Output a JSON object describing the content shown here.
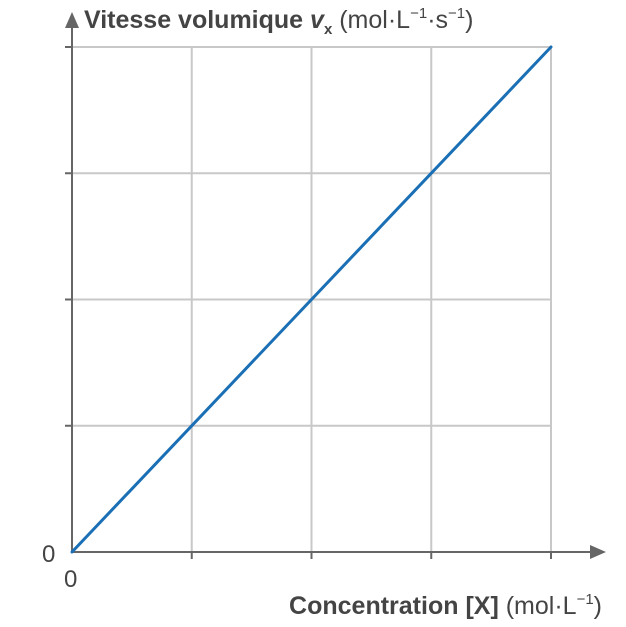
{
  "chart_data": {
    "type": "line",
    "ylabel": {
      "name": "Vitesse volumique",
      "symbol": "v",
      "subscript": "x",
      "unit_open": "(mol·L",
      "unit_exp1": "−1",
      "unit_mid": "·s",
      "unit_exp2": "−1",
      "unit_close": ")"
    },
    "xlabel": {
      "name": "Concentration [X]",
      "unit_open": "(mol·L",
      "unit_exp": "−1",
      "unit_close": ")"
    },
    "origin_x_label": "0",
    "origin_y_label": "0",
    "xlim": [
      0,
      4
    ],
    "ylim": [
      0,
      4
    ],
    "grid": true,
    "x_gridlines": [
      1,
      2,
      3,
      4
    ],
    "y_gridlines": [
      1,
      2,
      3,
      4
    ],
    "series": [
      {
        "x": [
          0,
          4
        ],
        "y": [
          0,
          4
        ],
        "color": "#1a6fb5"
      }
    ],
    "axis_color": "#666666",
    "grid_color": "#c8c8c8"
  }
}
